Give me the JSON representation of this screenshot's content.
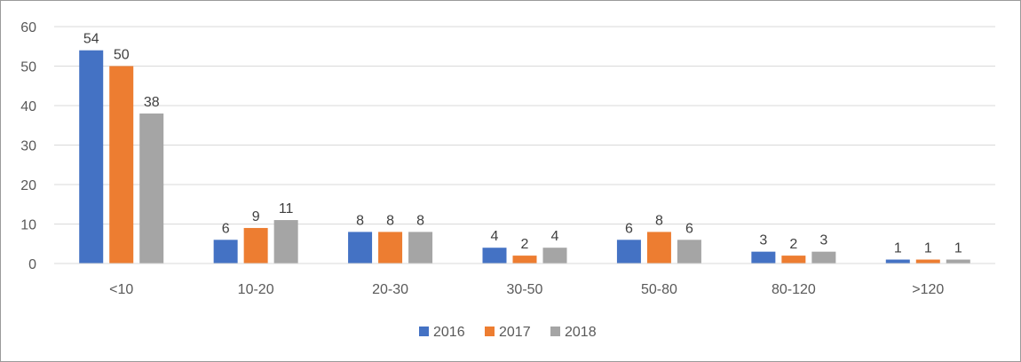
{
  "chart_data": {
    "type": "bar",
    "title": "",
    "xlabel": "",
    "ylabel": "",
    "categories": [
      "<10",
      "10-20",
      "20-30",
      "30-50",
      "50-80",
      "80-120",
      ">120"
    ],
    "series": [
      {
        "name": "2016",
        "color": "#4472C4",
        "values": [
          54,
          6,
          8,
          4,
          6,
          3,
          1
        ]
      },
      {
        "name": "2017",
        "color": "#ED7D31",
        "values": [
          50,
          9,
          8,
          2,
          8,
          2,
          1
        ]
      },
      {
        "name": "2018",
        "color": "#A5A5A5",
        "values": [
          38,
          11,
          8,
          4,
          6,
          3,
          1
        ]
      }
    ],
    "ylim": [
      0,
      60
    ],
    "yticks": [
      0,
      10,
      20,
      30,
      40,
      50,
      60
    ],
    "grid": true,
    "data_labels": true,
    "legend_position": "bottom"
  }
}
